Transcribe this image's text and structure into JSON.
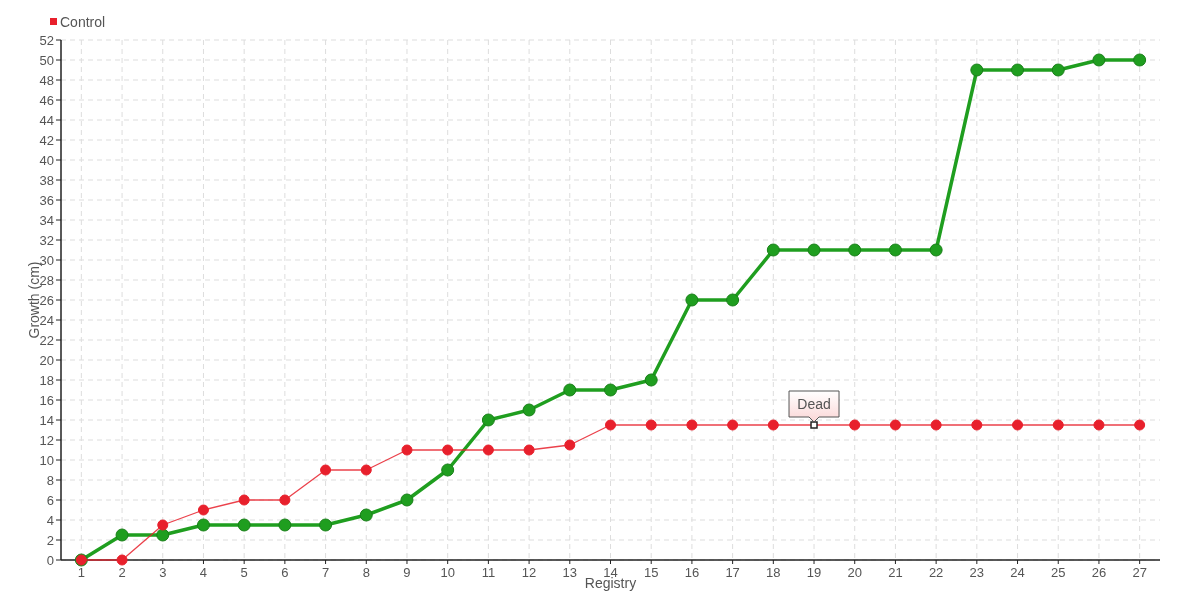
{
  "chart_data": {
    "type": "line",
    "xlabel": "Registry",
    "ylabel": "Growth (cm)",
    "categories": [
      "1",
      "2",
      "3",
      "4",
      "5",
      "6",
      "7",
      "8",
      "9",
      "10",
      "11",
      "12",
      "13",
      "14",
      "15",
      "16",
      "17",
      "18",
      "19",
      "20",
      "21",
      "22",
      "23",
      "24",
      "25",
      "26",
      "27"
    ],
    "series": [
      {
        "color": "#1f9e1f",
        "values": [
          0,
          2.5,
          2.5,
          3.5,
          3.5,
          3.5,
          3.5,
          4.5,
          6,
          9,
          14,
          15,
          17,
          17,
          18,
          26,
          26,
          31,
          31,
          31,
          31,
          31,
          49,
          49,
          49,
          50,
          50
        ]
      },
      {
        "name": "Control",
        "color": "#e8202c",
        "values": [
          0,
          0,
          3.5,
          5,
          6,
          6,
          9,
          9,
          11,
          11,
          11,
          11,
          11.5,
          13.5,
          13.5,
          13.5,
          13.5,
          13.5,
          13.5,
          13.5,
          13.5,
          13.5,
          13.5,
          13.5,
          13.5,
          13.5,
          13.5
        ]
      }
    ],
    "ylim": [
      0,
      52
    ],
    "yticks": [
      0,
      2,
      4,
      6,
      8,
      10,
      12,
      14,
      16,
      18,
      20,
      22,
      24,
      26,
      28,
      30,
      32,
      34,
      36,
      38,
      40,
      42,
      44,
      46,
      48,
      50,
      52
    ],
    "grid": true,
    "legend": "top left",
    "marker": "circle",
    "line_style": "solid",
    "annotations": [
      {
        "text": "Dead",
        "x": "19",
        "y": 13.5
      }
    ]
  }
}
